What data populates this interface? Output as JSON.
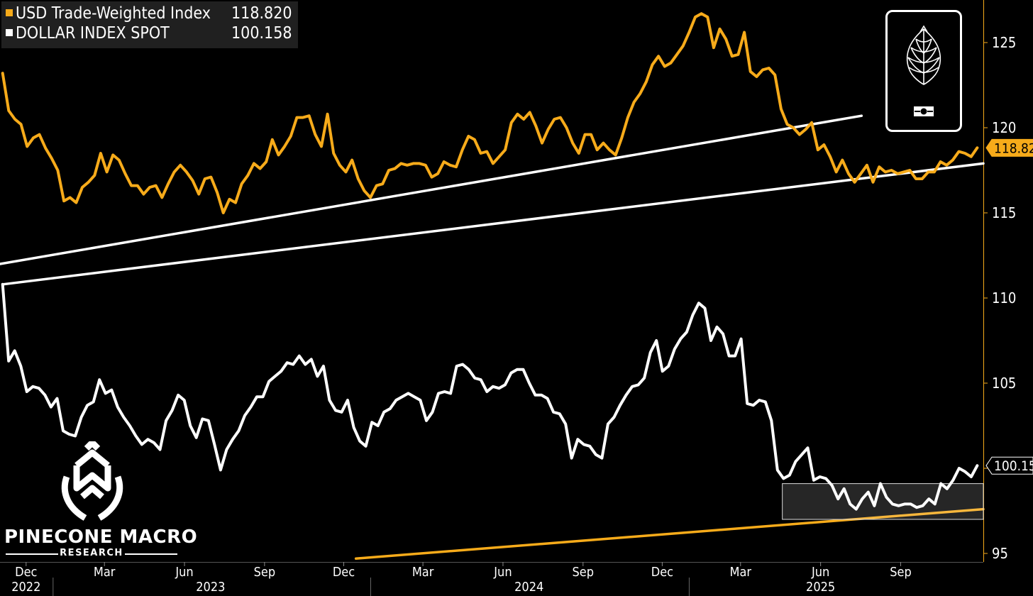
{
  "legend": {
    "series1_label": "USD Trade-Weighted Index",
    "series1_value": "118.820",
    "series2_label": "DOLLAR INDEX SPOT",
    "series2_value": "100.158"
  },
  "brand": {
    "name": "PINECONE MACRO",
    "sub": "RESEARCH"
  },
  "colors": {
    "orange": "#f7ab1a",
    "white": "#ffffff",
    "background": "#000000",
    "axis": "#f7ab1a"
  },
  "chart_data": {
    "type": "line",
    "x_start": "2022-11-04",
    "x_end": "2025-11-28",
    "xlim": [
      "2022-11-01",
      "2025-12-05"
    ],
    "ylim": [
      94.5,
      127.5
    ],
    "y_ticks": [
      95,
      100,
      105,
      110,
      115,
      120,
      125
    ],
    "month_ticks": [
      {
        "label": "Dec",
        "date": "2022-12-01"
      },
      {
        "label": "Mar",
        "date": "2023-03-01"
      },
      {
        "label": "Jun",
        "date": "2023-06-01"
      },
      {
        "label": "Sep",
        "date": "2023-09-01"
      },
      {
        "label": "Dec",
        "date": "2023-12-01"
      },
      {
        "label": "Mar",
        "date": "2024-03-01"
      },
      {
        "label": "Jun",
        "date": "2024-06-01"
      },
      {
        "label": "Sep",
        "date": "2024-09-01"
      },
      {
        "label": "Dec",
        "date": "2024-12-01"
      },
      {
        "label": "Mar",
        "date": "2025-03-01"
      },
      {
        "label": "Jun",
        "date": "2025-06-01"
      },
      {
        "label": "Sep",
        "date": "2025-09-01"
      }
    ],
    "year_labels": [
      {
        "label": "2022",
        "date": "2022-12-01"
      },
      {
        "label": "2023",
        "date": "2023-07-01"
      },
      {
        "label": "2024",
        "date": "2024-07-01"
      },
      {
        "label": "2025",
        "date": "2025-06-01"
      }
    ],
    "year_separators": [
      "2023-01-01",
      "2024-01-01",
      "2025-01-01"
    ],
    "series": [
      {
        "name": "USD Trade-Weighted Index",
        "color": "#f7ab1a",
        "last_label": "118.82",
        "values": [
          123.2,
          121.0,
          120.5,
          120.2,
          118.9,
          119.4,
          119.6,
          118.8,
          118.2,
          117.5,
          115.7,
          115.9,
          115.6,
          116.5,
          116.8,
          117.2,
          118.5,
          117.4,
          118.4,
          118.1,
          117.3,
          116.6,
          116.6,
          116.1,
          116.5,
          116.6,
          115.9,
          116.7,
          117.4,
          117.8,
          117.4,
          116.9,
          116.1,
          117.0,
          117.1,
          116.2,
          115.0,
          115.8,
          115.6,
          116.7,
          117.2,
          117.9,
          117.6,
          118.0,
          119.3,
          118.4,
          118.9,
          119.5,
          120.6,
          120.6,
          120.7,
          119.6,
          118.9,
          120.8,
          118.5,
          117.8,
          117.4,
          118.1,
          117.0,
          116.3,
          115.9,
          116.6,
          116.7,
          117.5,
          117.6,
          117.9,
          117.8,
          117.9,
          117.9,
          117.8,
          117.1,
          117.3,
          118.0,
          117.8,
          117.7,
          118.7,
          119.5,
          119.3,
          118.5,
          118.6,
          117.9,
          118.3,
          118.7,
          120.3,
          120.8,
          120.5,
          120.9,
          120.1,
          119.1,
          119.9,
          120.5,
          120.6,
          120.0,
          119.1,
          118.5,
          119.6,
          119.6,
          118.7,
          119.1,
          118.7,
          118.4,
          119.4,
          120.6,
          121.5,
          122.0,
          122.7,
          123.7,
          124.2,
          123.6,
          123.8,
          124.3,
          124.8,
          125.6,
          126.5,
          126.7,
          126.5,
          124.7,
          125.8,
          125.2,
          124.2,
          124.3,
          125.6,
          123.3,
          123.0,
          123.4,
          123.5,
          123.1,
          121.1,
          120.2,
          120.0,
          119.6,
          119.9,
          120.3,
          118.7,
          119.0,
          118.3,
          117.4,
          118.1,
          117.3,
          116.8,
          117.3,
          117.8,
          116.8,
          117.7,
          117.4,
          117.5,
          117.3,
          117.4,
          117.5,
          117.0,
          117.0,
          117.4,
          117.4,
          118.0,
          117.8,
          118.1,
          118.6,
          118.5,
          118.3,
          118.82
        ]
      },
      {
        "name": "DOLLAR INDEX SPOT",
        "color": "#ffffff",
        "last_label": "100.15",
        "values": [
          110.8,
          106.3,
          106.9,
          106.0,
          104.5,
          104.8,
          104.7,
          104.3,
          103.6,
          104.1,
          102.2,
          102.0,
          101.9,
          103.0,
          103.7,
          103.9,
          105.2,
          104.4,
          104.6,
          103.6,
          103.0,
          102.5,
          101.9,
          101.4,
          101.7,
          101.5,
          101.1,
          102.8,
          103.4,
          104.3,
          104.0,
          102.5,
          101.8,
          102.9,
          102.8,
          101.4,
          99.9,
          101.1,
          101.7,
          102.2,
          103.1,
          103.6,
          104.2,
          104.2,
          105.1,
          105.4,
          105.7,
          106.2,
          106.1,
          106.6,
          106.1,
          106.4,
          105.4,
          106.0,
          104.0,
          103.4,
          103.3,
          104.0,
          102.4,
          101.6,
          101.3,
          102.7,
          102.5,
          103.3,
          103.5,
          104.0,
          104.2,
          104.4,
          104.2,
          104.0,
          102.8,
          103.3,
          104.4,
          104.5,
          104.4,
          106.0,
          106.1,
          105.8,
          105.3,
          105.2,
          104.5,
          104.8,
          104.7,
          104.9,
          105.6,
          105.8,
          105.8,
          105.0,
          104.3,
          104.3,
          104.1,
          103.3,
          103.2,
          102.6,
          100.6,
          101.7,
          101.4,
          101.3,
          100.8,
          100.6,
          102.6,
          103.0,
          103.7,
          104.3,
          104.8,
          104.9,
          105.3,
          106.8,
          107.5,
          105.7,
          106.0,
          107.0,
          107.6,
          108.0,
          109.0,
          109.7,
          109.4,
          107.5,
          108.3,
          107.9,
          106.6,
          106.6,
          107.6,
          103.8,
          103.7,
          104.0,
          103.9,
          102.8,
          99.9,
          99.4,
          99.6,
          100.4,
          100.8,
          101.2,
          99.3,
          99.5,
          99.4,
          99.0,
          98.2,
          98.8,
          97.9,
          97.6,
          98.2,
          98.6,
          97.8,
          99.1,
          98.3,
          97.9,
          97.8,
          97.9,
          97.9,
          97.7,
          97.8,
          98.2,
          97.9,
          99.1,
          98.8,
          99.3,
          100.0,
          99.8,
          99.5,
          100.158
        ]
      }
    ],
    "annotations": [
      {
        "type": "trendline",
        "color": "#ffffff",
        "from": [
          "2022-11-01",
          112.0
        ],
        "to": [
          "2025-07-18",
          120.7
        ]
      },
      {
        "type": "trendline",
        "color": "#ffffff",
        "from": [
          "2022-11-04",
          110.8
        ],
        "to": [
          "2025-12-05",
          117.9
        ]
      },
      {
        "type": "trendline",
        "color": "#f7ab1a",
        "from": [
          "2023-12-15",
          94.7
        ],
        "to": [
          "2025-12-05",
          97.6
        ]
      },
      {
        "type": "zone",
        "from": "2025-04-18",
        "to": "2025-12-05",
        "y0": 97.0,
        "y1": 99.1
      }
    ]
  }
}
